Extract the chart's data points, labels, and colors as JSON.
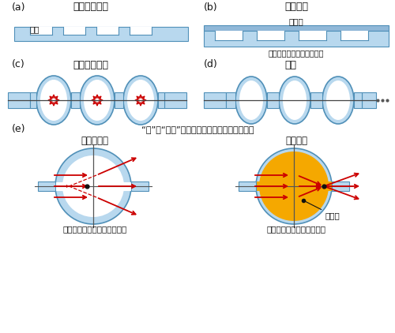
{
  "bg_color": "#ffffff",
  "light_blue": "#b8d8ee",
  "border_blue": "#5090b8",
  "red": "#cc0000",
  "orange": "#f5a800",
  "black": "#111111",
  "gray": "#666666",
  "title_a": "形成微小凹槽",
  "title_b": "临时接合",
  "title_c": "加热、抽真空",
  "title_d": "冷却",
  "title_e": "“有”和“没有”填充液时的光学特性及透镜原理",
  "label_a_groove": "凹槽",
  "label_b_cover": "盖玻片",
  "label_b_base": "实施了微细加工的基板玻璃",
  "label_e_no": "没有填充液",
  "label_e_yes": "有填充液",
  "label_e_no_func": "空心圆顶结构发挥凹透镜功能",
  "label_e_yes_func": "有填充液时发挥凸透镜功能",
  "label_filling": "充填液",
  "panel_labels": [
    "(a)",
    "(b)",
    "(c)",
    "(d)",
    "(e)"
  ]
}
